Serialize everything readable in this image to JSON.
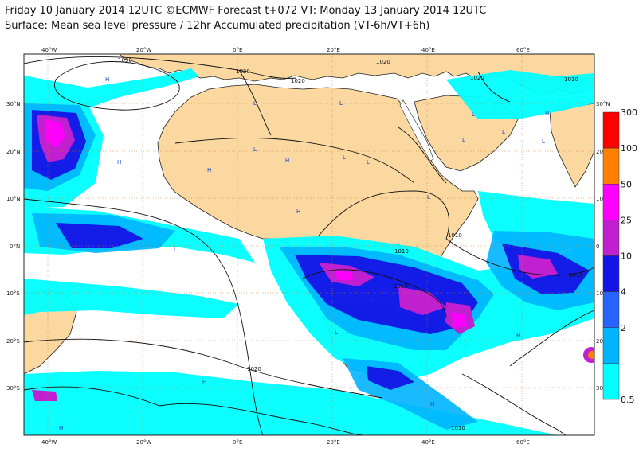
{
  "header": {
    "title_line1": "Friday 10 January 2014 12UTC ©ECMWF Forecast t+072 VT: Monday 13 January 2014 12UTC",
    "title_line2": "Surface: Mean sea level pressure / 12hr Accumulated precipitation (VT-6h/VT+6h)"
  },
  "axes": {
    "lon_labels": [
      "40°W",
      "20°W",
      "0°E",
      "20°E",
      "40°E",
      "60°E"
    ],
    "lat_labels_left": [
      "30°N",
      "20°N",
      "10°N",
      "0°N",
      "10°S",
      "20°S",
      "30°S"
    ],
    "lat_labels_right": [
      "30°N",
      "20",
      "10",
      "0",
      "10",
      "20",
      "30"
    ]
  },
  "isobar_labels": [
    "1030",
    "1020",
    "1020",
    "1020",
    "1020",
    "1010",
    "1010",
    "1010",
    "1010",
    "1010",
    "1020",
    "1010"
  ],
  "pressure_centres": [
    "H",
    "H",
    "H",
    "H",
    "H",
    "H",
    "H",
    "H",
    "H",
    "H",
    "L",
    "L",
    "L",
    "L",
    "L",
    "L",
    "L",
    "L",
    "L",
    "L",
    "L",
    "L",
    "L"
  ],
  "legend": {
    "levels": [
      "300",
      "100",
      "50",
      "25",
      "10",
      "4",
      "2",
      "0.5"
    ],
    "colors": [
      "#ff0000",
      "#ff8000",
      "#ff00ff",
      "#c020d0",
      "#1414e6",
      "#2864ff",
      "#00b4ff",
      "#00ffff"
    ]
  },
  "colors": {
    "ocean": "#ffffff",
    "land": "#fad8a0",
    "grid": "#c87828",
    "precip_light": "#00ffff",
    "precip_mid": "#00b4ff",
    "precip_heavy": "#1414e6",
    "precip_very_heavy": "#c020d0"
  }
}
